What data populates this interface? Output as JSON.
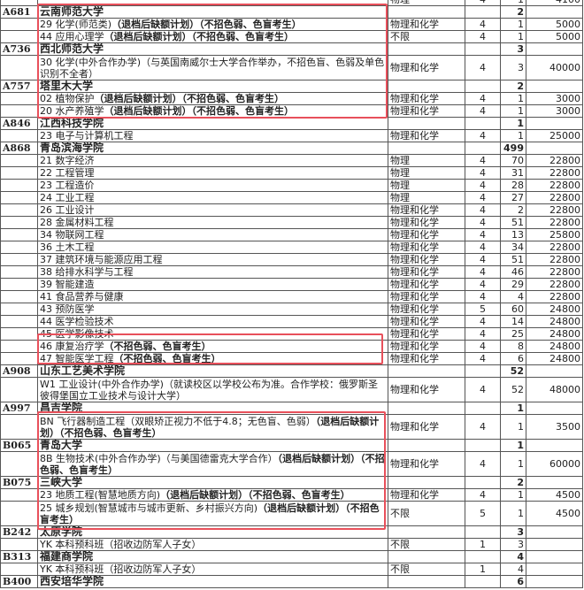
{
  "highlight_color": "#e8505b",
  "rows": [
    {
      "type": "major",
      "code": "",
      "name": "",
      "bold": "",
      "subject": "物理",
      "years": "4",
      "count": "1",
      "fee": "4100"
    },
    {
      "type": "school",
      "code": "A681",
      "name": "云南师范大学",
      "count": "2"
    },
    {
      "type": "major",
      "name": "29 化学(师范类)",
      "bold": "（退档后缺额计划）（不招色弱、色盲考生）",
      "subject": "物理和化学",
      "years": "4",
      "count": "1",
      "fee": "5000"
    },
    {
      "type": "major",
      "name": "44 应用心理学",
      "bold": "（退档后缺额计划）（不招色弱、色盲考生）",
      "subject": "不限",
      "years": "4",
      "count": "1",
      "fee": "5000"
    },
    {
      "type": "school",
      "code": "A736",
      "name": "西北师范大学",
      "count": "3"
    },
    {
      "type": "major",
      "tall": true,
      "name": "30 化学(中外合作办学)（与英国南威尔士大学合作举办，不招色盲、色弱及单色识别不全者）",
      "bold": "",
      "subject": "物理和化学",
      "years": "4",
      "count": "3",
      "fee": "40000"
    },
    {
      "type": "school",
      "code": "A757",
      "name": "塔里木大学",
      "count": "2"
    },
    {
      "type": "major",
      "name": "02 植物保护",
      "bold": "（退档后缺额计划）（不招色弱、色盲考生）",
      "subject": "物理和化学",
      "years": "4",
      "count": "1",
      "fee": "3000"
    },
    {
      "type": "major",
      "name": "20 水产养殖学",
      "bold": "（退档后缺额计划）（不招色弱、色盲考生）",
      "subject": "物理和化学",
      "years": "4",
      "count": "1",
      "fee": "3000"
    },
    {
      "type": "school",
      "code": "A846",
      "name": "江西科技学院",
      "count": "1"
    },
    {
      "type": "major",
      "name": "23 电子与计算机工程",
      "bold": "",
      "subject": "物理和化学",
      "years": "4",
      "count": "1",
      "fee": "25000"
    },
    {
      "type": "school",
      "code": "A868",
      "name": "青岛滨海学院",
      "count": "499"
    },
    {
      "type": "major",
      "name": "21 数字经济",
      "bold": "",
      "subject": "物理",
      "years": "4",
      "count": "70",
      "fee": "22800"
    },
    {
      "type": "major",
      "name": "22 工程管理",
      "bold": "",
      "subject": "物理",
      "years": "4",
      "count": "31",
      "fee": "22800"
    },
    {
      "type": "major",
      "name": "23 工程造价",
      "bold": "",
      "subject": "物理",
      "years": "4",
      "count": "28",
      "fee": "22800"
    },
    {
      "type": "major",
      "name": "24 工业工程",
      "bold": "",
      "subject": "物理",
      "years": "4",
      "count": "27",
      "fee": "22800"
    },
    {
      "type": "major",
      "name": "26 工业设计",
      "bold": "",
      "subject": "物理和化学",
      "years": "4",
      "count": "2",
      "fee": "22800"
    },
    {
      "type": "major",
      "name": "28 金属材料工程",
      "bold": "",
      "subject": "物理和化学",
      "years": "4",
      "count": "51",
      "fee": "22800"
    },
    {
      "type": "major",
      "name": "34 物联网工程",
      "bold": "",
      "subject": "物理和化学",
      "years": "4",
      "count": "13",
      "fee": "25800"
    },
    {
      "type": "major",
      "name": "36 土木工程",
      "bold": "",
      "subject": "物理和化学",
      "years": "4",
      "count": "34",
      "fee": "22800"
    },
    {
      "type": "major",
      "name": "37 建筑环境与能源应用工程",
      "bold": "",
      "subject": "物理和化学",
      "years": "4",
      "count": "51",
      "fee": "22800"
    },
    {
      "type": "major",
      "name": "38 给排水科学与工程",
      "bold": "",
      "subject": "物理和化学",
      "years": "4",
      "count": "46",
      "fee": "22800"
    },
    {
      "type": "major",
      "name": "39 智能建造",
      "bold": "",
      "subject": "物理和化学",
      "years": "4",
      "count": "29",
      "fee": "22800"
    },
    {
      "type": "major",
      "name": "41 食品营养与健康",
      "bold": "",
      "subject": "物理和化学",
      "years": "4",
      "count": "4",
      "fee": "22800"
    },
    {
      "type": "major",
      "name": "43 预防医学",
      "bold": "",
      "subject": "物理和化学",
      "years": "5",
      "count": "60",
      "fee": "24800"
    },
    {
      "type": "major",
      "name": "44 医学检验技术",
      "bold": "",
      "subject": "物理和化学",
      "years": "4",
      "count": "14",
      "fee": "24800"
    },
    {
      "type": "major",
      "name": "45 医学影像技术",
      "bold": "",
      "subject": "物理和化学",
      "years": "4",
      "count": "25",
      "fee": "24800"
    },
    {
      "type": "major",
      "name": "46 康复治疗学",
      "bold": "（不招色弱、色盲考生）",
      "subject": "物理和化学",
      "years": "4",
      "count": "8",
      "fee": "24800"
    },
    {
      "type": "major",
      "name": "47 智能医学工程",
      "bold": "（不招色弱、色盲考生）",
      "subject": "物理和化学",
      "years": "4",
      "count": "6",
      "fee": "24800"
    },
    {
      "type": "school",
      "code": "A908",
      "name": "山东工艺美术学院",
      "count": "52"
    },
    {
      "type": "major",
      "tall": true,
      "name": "W1 工业设计(中外合作办学)（就读校区以学校公布为准。合作学校：俄罗斯圣彼得堡国立工业技术与设计大学）",
      "bold": "",
      "subject": "物理和化学",
      "years": "4",
      "count": "52",
      "fee": "48000"
    },
    {
      "type": "school",
      "code": "A997",
      "name": "昌吉学院",
      "count": "1"
    },
    {
      "type": "major",
      "tall": true,
      "name": "BN 飞行器制造工程（双眼矫正视力不低于4.8；无色盲、色弱）",
      "bold": "（退档后缺额计划）（不招色弱、色盲考生）",
      "subject": "物理和化学",
      "years": "4",
      "count": "1",
      "fee": "3500"
    },
    {
      "type": "school",
      "code": "B065",
      "name": "青岛大学",
      "count": "1"
    },
    {
      "type": "major",
      "tall": true,
      "name": "8B 生物技术(中外合作办学)（与美国德雷克大学合作）",
      "bold": "（退档后缺额计划）（不招色弱、色盲考生）",
      "subject": "物理和化学",
      "years": "4",
      "count": "1",
      "fee": "60000"
    },
    {
      "type": "school",
      "code": "B075",
      "name": "三峡大学",
      "count": "2"
    },
    {
      "type": "major",
      "name": "23 地质工程(智慧地质方向)",
      "bold": "（退档后缺额计划）（不招色弱、色盲考生）",
      "subject": "物理和化学",
      "years": "4",
      "count": "1",
      "fee": "4500"
    },
    {
      "type": "major",
      "tall": true,
      "name": "25 城乡规划(智慧城市与城市更新、乡村振兴方向)",
      "bold": "（退档后缺额计划）（不招色盲考生）",
      "subject": "不限",
      "years": "5",
      "count": "1",
      "fee": "4500"
    },
    {
      "type": "school",
      "code": "B242",
      "name": "太原学院",
      "count": "3"
    },
    {
      "type": "major",
      "name": "YK 本科预科班（招收边防军人子女）",
      "bold": "",
      "subject": "不限",
      "years": "1",
      "count": "3",
      "fee": ""
    },
    {
      "type": "school",
      "code": "B313",
      "name": "福建商学院",
      "count": "4"
    },
    {
      "type": "major",
      "name": "YK 本科预科班（招收边防军人子女）",
      "bold": "",
      "subject": "不限",
      "years": "1",
      "count": "4",
      "fee": ""
    },
    {
      "type": "school",
      "code": "B400",
      "name": "西安培华学院",
      "count": "6"
    }
  ]
}
